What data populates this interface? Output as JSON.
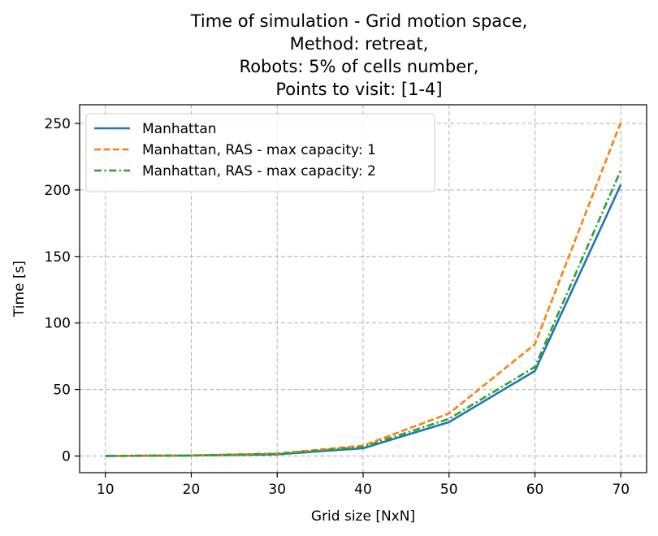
{
  "chart_data": {
    "type": "line",
    "title_lines": [
      "Time of simulation - Grid motion space,",
      "Method: retreat,",
      "Robots: 5% of cells number,",
      "Points to visit: [1-4]"
    ],
    "xlabel": "Grid size [NxN]",
    "ylabel": "Time [s]",
    "x": [
      10,
      20,
      30,
      40,
      50,
      60,
      70
    ],
    "xlim": [
      7,
      73
    ],
    "ylim": [
      -12.5,
      264
    ],
    "xticks": [
      10,
      20,
      30,
      40,
      50,
      60,
      70
    ],
    "yticks": [
      0,
      50,
      100,
      150,
      200,
      250
    ],
    "grid": true,
    "legend_position": "top-left",
    "series": [
      {
        "name": "Manhattan",
        "color": "#1f77b4",
        "style": "solid",
        "values": [
          0.1,
          0.4,
          1.3,
          5.8,
          25.5,
          64,
          204
        ]
      },
      {
        "name": "Manhattan, RAS - max capacity: 1",
        "color": "#ff7f0e",
        "style": "dashed",
        "values": [
          0.1,
          0.5,
          1.9,
          7.8,
          32,
          84,
          251
        ]
      },
      {
        "name": "Manhattan, RAS - max capacity: 2",
        "color": "#2ca02c",
        "style": "dashdot",
        "values": [
          0.1,
          0.4,
          1.6,
          6.8,
          28,
          67,
          215
        ]
      }
    ]
  }
}
